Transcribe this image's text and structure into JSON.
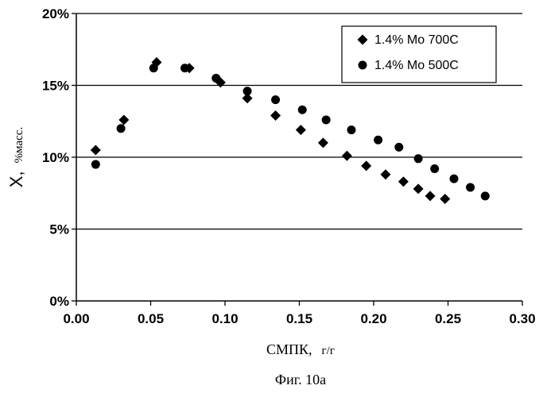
{
  "chart_data": {
    "type": "scatter",
    "title": "",
    "xlabel": "СМПК,",
    "xlabel_unit": "г/г",
    "ylabel": "X,",
    "ylabel_unit": "%масс.",
    "caption": "Фиг. 10а",
    "xlim": [
      0,
      0.3
    ],
    "ylim": [
      0,
      20
    ],
    "x_ticks": [
      0,
      0.05,
      0.1,
      0.15,
      0.2,
      0.25,
      0.3
    ],
    "x_tick_labels": [
      "0.00",
      "0.05",
      "0.10",
      "0.15",
      "0.20",
      "0.25",
      "0.30"
    ],
    "y_ticks": [
      0,
      5,
      10,
      15,
      20
    ],
    "y_tick_labels": [
      "0%",
      "5%",
      "10%",
      "15%",
      "20%"
    ],
    "grid": "horizontal",
    "legend_position": "top-right",
    "series": [
      {
        "name": "1.4% Mo 700C",
        "marker": "diamond",
        "color": "#000000",
        "points": [
          [
            0.013,
            10.5
          ],
          [
            0.032,
            12.6
          ],
          [
            0.054,
            16.6
          ],
          [
            0.076,
            16.2
          ],
          [
            0.097,
            15.2
          ],
          [
            0.115,
            14.1
          ],
          [
            0.134,
            12.9
          ],
          [
            0.151,
            11.9
          ],
          [
            0.166,
            11.0
          ],
          [
            0.182,
            10.1
          ],
          [
            0.195,
            9.4
          ],
          [
            0.208,
            8.8
          ],
          [
            0.22,
            8.3
          ],
          [
            0.23,
            7.8
          ],
          [
            0.238,
            7.3
          ],
          [
            0.248,
            7.1
          ]
        ]
      },
      {
        "name": "1.4% Mo 500C",
        "marker": "circle",
        "color": "#000000",
        "points": [
          [
            0.013,
            9.5
          ],
          [
            0.03,
            12.0
          ],
          [
            0.052,
            16.2
          ],
          [
            0.073,
            16.2
          ],
          [
            0.094,
            15.5
          ],
          [
            0.115,
            14.6
          ],
          [
            0.134,
            14.0
          ],
          [
            0.152,
            13.3
          ],
          [
            0.168,
            12.6
          ],
          [
            0.185,
            11.9
          ],
          [
            0.203,
            11.2
          ],
          [
            0.217,
            10.7
          ],
          [
            0.23,
            9.9
          ],
          [
            0.241,
            9.2
          ],
          [
            0.254,
            8.5
          ],
          [
            0.265,
            7.9
          ],
          [
            0.275,
            7.3
          ]
        ]
      }
    ]
  }
}
